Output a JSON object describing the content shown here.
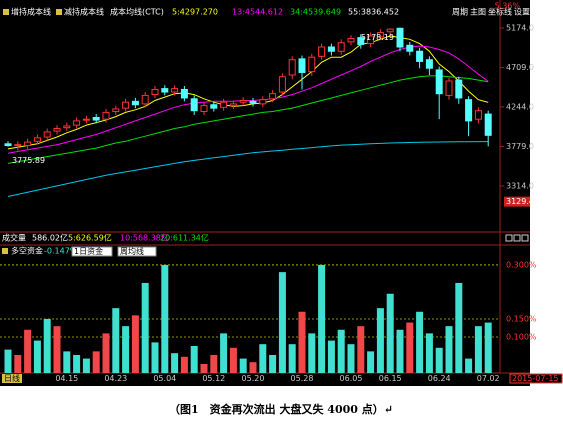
{
  "toolbar": {
    "buttons": [
      "周期",
      "主图",
      "坐标线",
      "设置"
    ]
  },
  "chart_data": [
    {
      "type": "candlestick",
      "header": [
        "增持成本线",
        "减持成本线",
        "成本均线(CTC)"
      ],
      "change_label": "5.36%",
      "open": [
        3810,
        3790,
        3790,
        3840,
        3890,
        3960,
        4000,
        4030,
        4090,
        4120,
        4100,
        4190,
        4230,
        4310,
        4280,
        4390,
        4460,
        4420,
        4450,
        4340,
        4190,
        4270,
        4240,
        4260,
        4300,
        4310,
        4280,
        4340,
        4420,
        4620,
        4810,
        4660,
        4840,
        4950,
        4900,
        5010,
        5060,
        4990,
        5070,
        5130,
        5170,
        4970,
        4900,
        4800,
        4680,
        4380,
        4560,
        4330,
        4100,
        4160
      ],
      "close": [
        3790,
        3800,
        3830,
        3880,
        3950,
        3990,
        4020,
        4080,
        4100,
        4090,
        4180,
        4220,
        4300,
        4270,
        4380,
        4450,
        4420,
        4460,
        4350,
        4200,
        4260,
        4230,
        4300,
        4280,
        4320,
        4290,
        4330,
        4400,
        4600,
        4800,
        4650,
        4830,
        4950,
        4900,
        5000,
        5050,
        4980,
        5080,
        5120,
        5160,
        4950,
        4900,
        4780,
        4700,
        4400,
        4550,
        4350,
        4080,
        4200,
        3910
      ],
      "high": [
        3840,
        3840,
        3870,
        3920,
        3990,
        4030,
        4060,
        4120,
        4140,
        4160,
        4220,
        4260,
        4340,
        4350,
        4420,
        4490,
        4500,
        4500,
        4490,
        4380,
        4300,
        4310,
        4340,
        4320,
        4360,
        4350,
        4370,
        4440,
        4640,
        4840,
        4850,
        4870,
        4990,
        4990,
        5040,
        5090,
        5100,
        5120,
        5160,
        5170,
        5178.19,
        5010,
        4940,
        4840,
        4720,
        4590,
        4600,
        4370,
        4240,
        4200
      ],
      "low": [
        3775.89,
        3730,
        3750,
        3800,
        3850,
        3920,
        3960,
        3990,
        4050,
        4050,
        4060,
        4150,
        4190,
        4230,
        4240,
        4350,
        4380,
        4380,
        4310,
        4150,
        4150,
        4190,
        4200,
        4220,
        4260,
        4250,
        4240,
        4300,
        4380,
        4570,
        4450,
        4610,
        4800,
        4850,
        4860,
        4970,
        4930,
        4950,
        5030,
        5090,
        4900,
        4850,
        4700,
        4620,
        4100,
        4330,
        4280,
        3900,
        4050,
        3780
      ],
      "up_color": "#ff3232",
      "down_color": "#54ffff",
      "series": [
        {
          "name": "5:4297.270",
          "color": "#ffff00",
          "values": [
            3750,
            3770,
            3790,
            3810,
            3850,
            3890,
            3940,
            3980,
            4030,
            4060,
            4090,
            4130,
            4180,
            4210,
            4250,
            4320,
            4360,
            4400,
            4410,
            4390,
            4340,
            4300,
            4270,
            4250,
            4260,
            4280,
            4290,
            4320,
            4390,
            4480,
            4570,
            4660,
            4770,
            4830,
            4830,
            4890,
            4980,
            5000,
            5040,
            5080,
            5060,
            5040,
            4990,
            4900,
            4750,
            4660,
            4550,
            4430,
            4330,
            4297.27
          ]
        },
        {
          "name": "13:4544.612",
          "color": "#ff00ff",
          "values": [
            3700,
            3720,
            3740,
            3760,
            3780,
            3800,
            3830,
            3860,
            3890,
            3920,
            3960,
            4000,
            4040,
            4080,
            4120,
            4160,
            4200,
            4240,
            4270,
            4290,
            4300,
            4310,
            4310,
            4310,
            4320,
            4320,
            4330,
            4340,
            4360,
            4390,
            4430,
            4470,
            4520,
            4570,
            4620,
            4670,
            4720,
            4780,
            4830,
            4880,
            4920,
            4950,
            4960,
            4950,
            4920,
            4880,
            4810,
            4720,
            4630,
            4544.612
          ]
        },
        {
          "name": "34:4539.649",
          "color": "#00e000",
          "values": [
            3580,
            3600,
            3620,
            3640,
            3660,
            3680,
            3700,
            3720,
            3740,
            3760,
            3790,
            3820,
            3840,
            3870,
            3900,
            3930,
            3960,
            3990,
            4010,
            4040,
            4060,
            4080,
            4100,
            4120,
            4140,
            4160,
            4180,
            4190,
            4210,
            4230,
            4260,
            4290,
            4320,
            4350,
            4380,
            4410,
            4440,
            4470,
            4500,
            4530,
            4560,
            4580,
            4600,
            4610,
            4610,
            4600,
            4590,
            4580,
            4560,
            4539.649
          ]
        },
        {
          "name": "55:3836.452",
          "color": "#00c8e8",
          "values": [
            3190,
            3215,
            3240,
            3265,
            3290,
            3315,
            3340,
            3365,
            3390,
            3415,
            3440,
            3460,
            3480,
            3500,
            3520,
            3540,
            3560,
            3580,
            3600,
            3615,
            3630,
            3645,
            3660,
            3675,
            3690,
            3705,
            3715,
            3725,
            3735,
            3745,
            3755,
            3765,
            3775,
            3785,
            3795,
            3800,
            3805,
            3810,
            3815,
            3820,
            3823,
            3826,
            3828,
            3830,
            3832,
            3833,
            3834,
            3835,
            3836,
            3836.452
          ]
        }
      ],
      "ylim": [
        2972,
        5409
      ],
      "yticks": [
        {
          "value": 5174,
          "label": "5174.0"
        },
        {
          "value": 4709,
          "label": "4709.0"
        },
        {
          "value": 4244,
          "label": "4244.0"
        },
        {
          "value": 3779,
          "label": "3779.0"
        },
        {
          "value": 3314,
          "label": "3314.0"
        }
      ],
      "cursor_value": 3129.4
    },
    {
      "type": "bar",
      "title": "多空资金",
      "value_label": "-0.147%",
      "selectors": [
        "1日资金",
        "周均线"
      ],
      "categories": [
        null,
        null,
        null,
        null,
        null,
        null,
        "04.15",
        null,
        null,
        null,
        null,
        "04.23",
        null,
        null,
        null,
        null,
        "05.04",
        null,
        null,
        null,
        null,
        "05.12",
        null,
        null,
        null,
        "05.20",
        null,
        null,
        null,
        null,
        "05.28",
        null,
        null,
        null,
        null,
        "06.05",
        null,
        null,
        null,
        "06.15",
        null,
        null,
        null,
        null,
        "06.24",
        null,
        null,
        null,
        null,
        "07.02"
      ],
      "series": [
        {
          "color": "#40e0d0",
          "values": [
            0.065,
            null,
            null,
            0.09,
            0.15,
            null,
            0.06,
            0.05,
            0.04,
            null,
            null,
            0.18,
            0.13,
            null,
            0.25,
            0.085,
            0.3,
            0.055,
            null,
            0.075,
            null,
            null,
            0.11,
            null,
            0.04,
            null,
            0.08,
            0.05,
            0.28,
            0.08,
            null,
            0.11,
            0.3,
            0.09,
            0.12,
            0.08,
            null,
            0.06,
            0.18,
            0.22,
            0.12,
            null,
            0.17,
            0.11,
            0.07,
            0.13,
            0.25,
            0.04,
            0.13,
            0.14
          ]
        },
        {
          "color": "#f04848",
          "values": [
            null,
            0.05,
            0.12,
            null,
            null,
            0.13,
            null,
            null,
            null,
            0.06,
            0.11,
            null,
            null,
            0.16,
            null,
            null,
            null,
            null,
            0.045,
            null,
            0.025,
            0.05,
            null,
            0.07,
            null,
            0.03,
            null,
            null,
            null,
            null,
            0.17,
            null,
            null,
            null,
            null,
            null,
            0.13,
            null,
            null,
            null,
            null,
            0.14,
            null,
            null,
            null,
            null,
            null,
            null,
            null,
            null
          ]
        }
      ],
      "ylim": [
        0,
        0.347
      ],
      "yticks": [
        {
          "value": 0.3,
          "label": "0.300%"
        },
        {
          "value": 0.15,
          "label": "0.150%"
        },
        {
          "value": 0.1,
          "label": "0.100%"
        }
      ],
      "grid": true
    }
  ],
  "volume_header": [
    "成交量",
    "586.02亿",
    "5:626.59亿",
    "10:568.38亿",
    "20:611.34亿"
  ],
  "footer": {
    "period": "日线",
    "date": "2015-07-15 三"
  },
  "caption": "（图1　资金再次流出 大盘又失 4000 点）↵"
}
